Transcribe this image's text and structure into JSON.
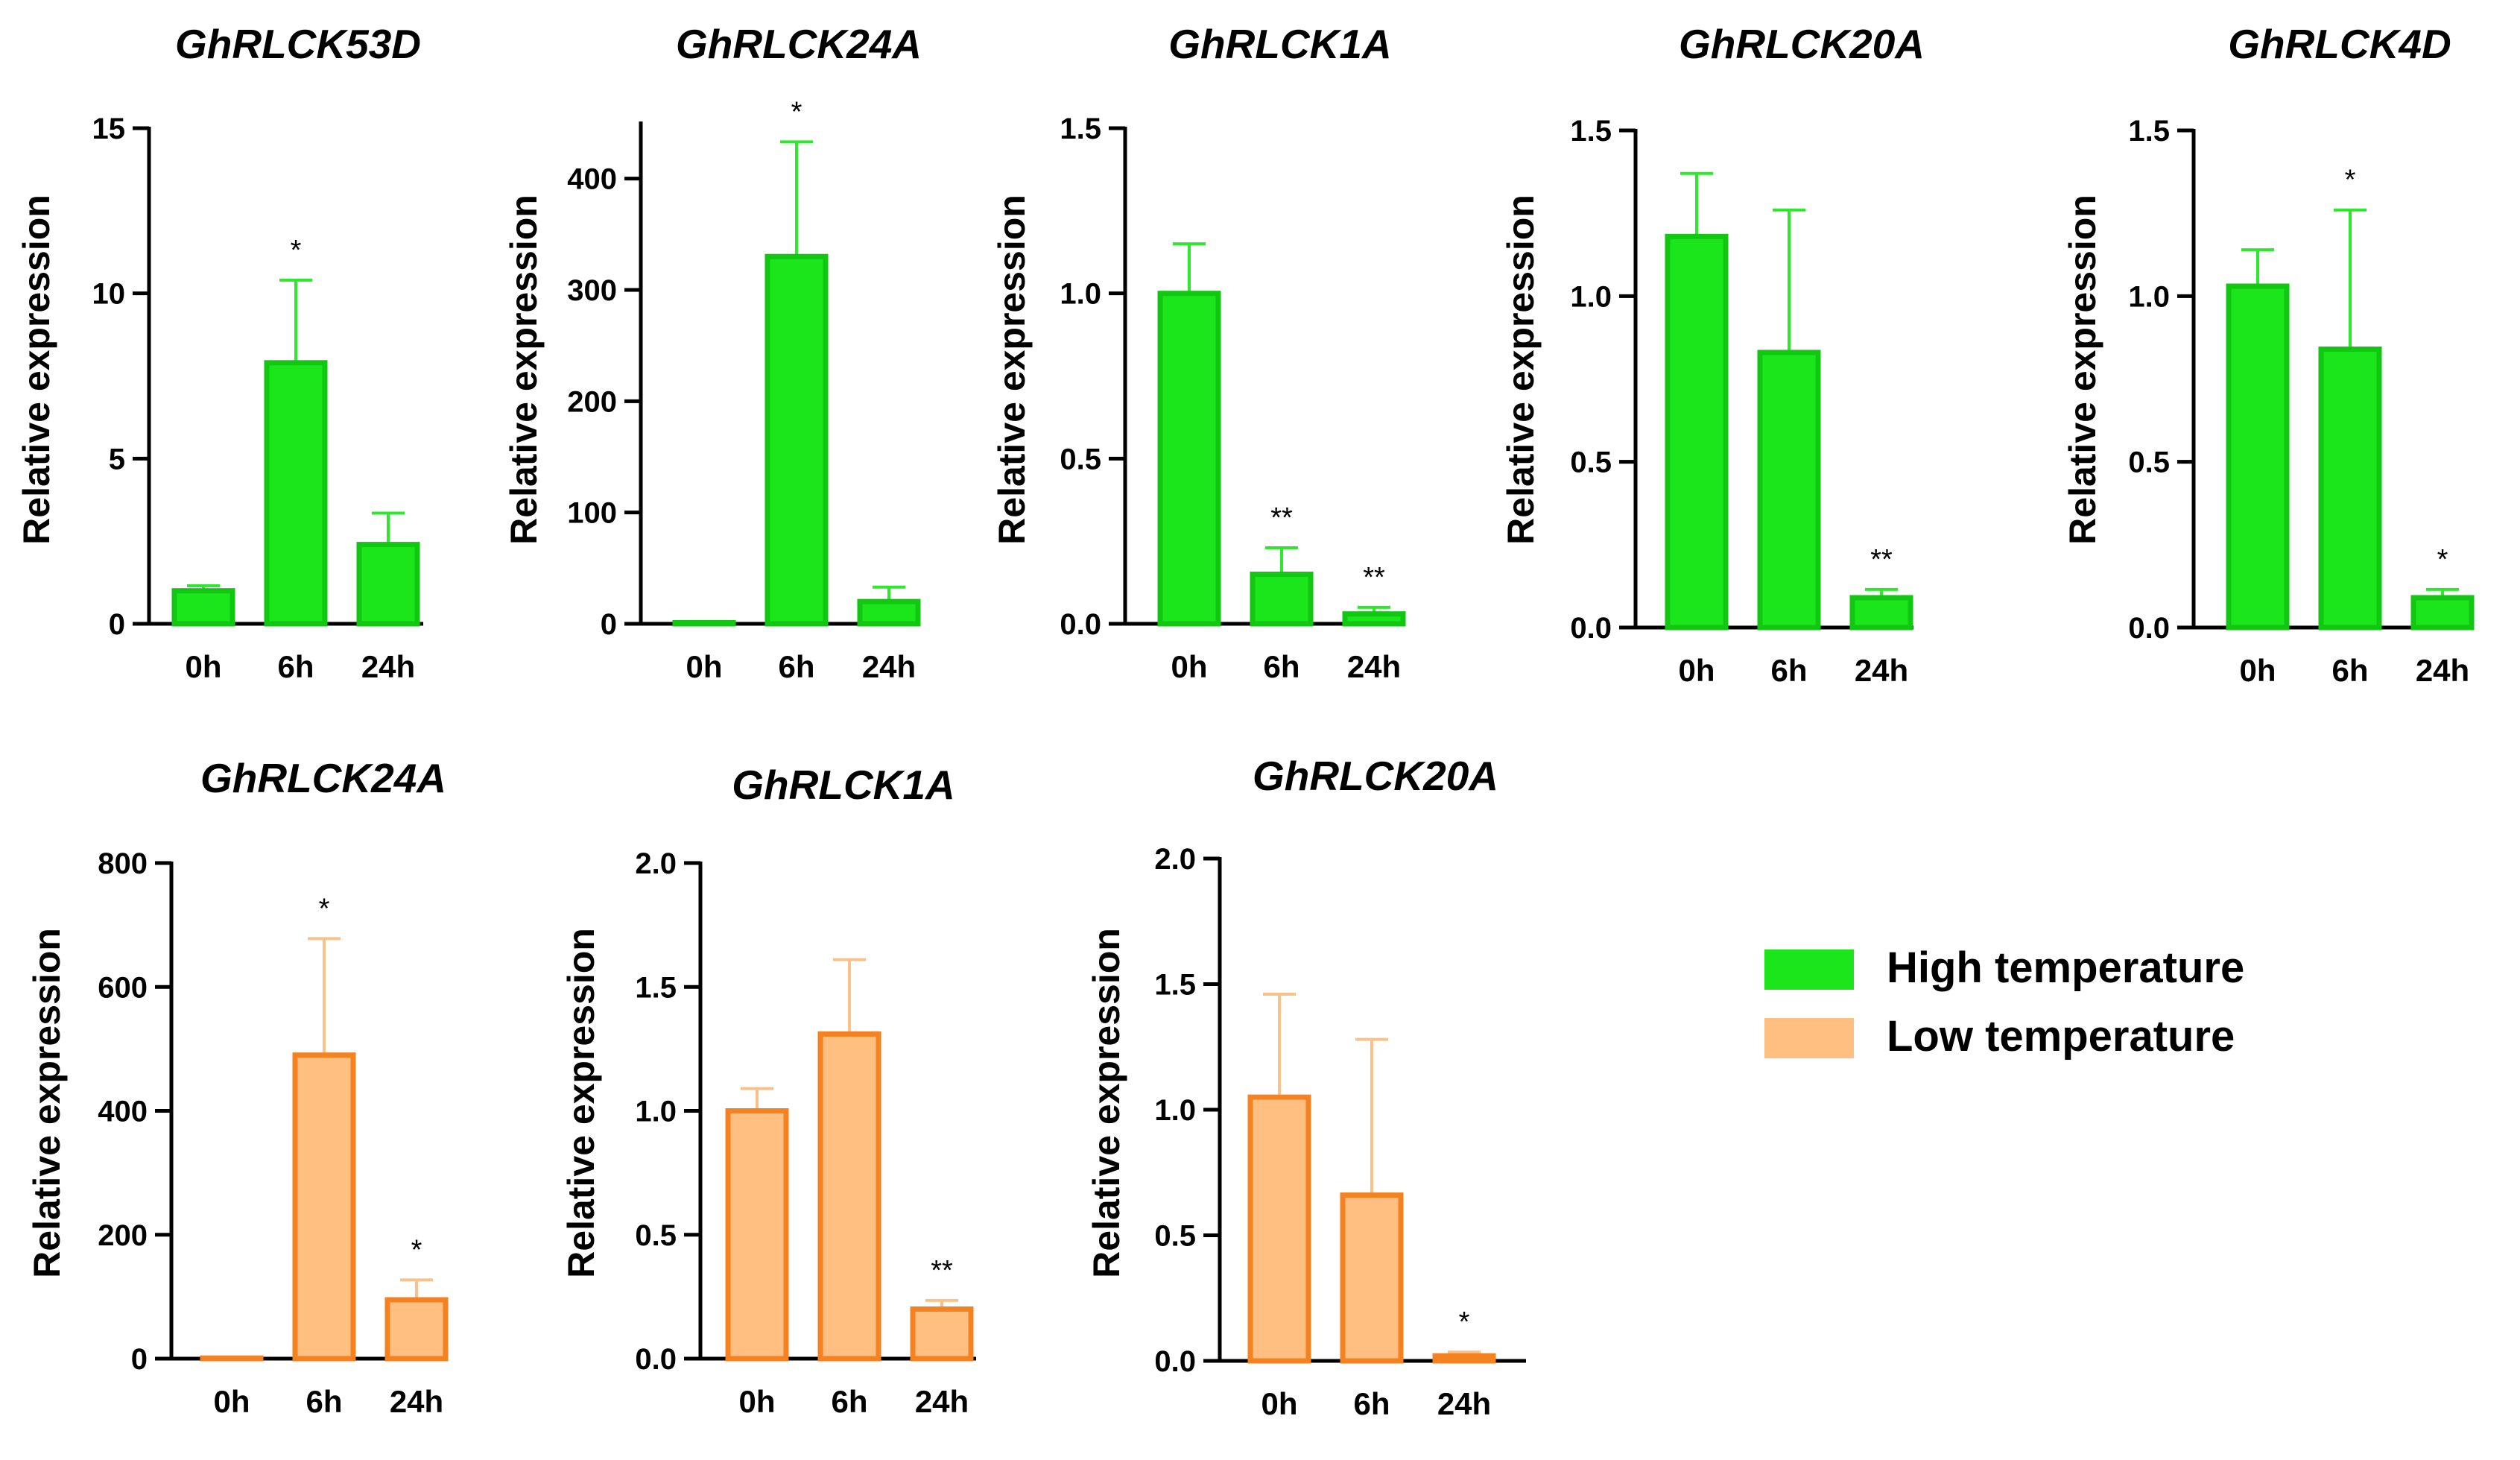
{
  "chart_data": [
    {
      "type": "bar",
      "title": "GhRLCK53D",
      "ylabel": "Relative expression",
      "xlabel": "",
      "categories": [
        "0h",
        "6h",
        "24h"
      ],
      "series": [
        {
          "name": "High temperature",
          "values": [
            1.0,
            7.9,
            2.4
          ],
          "errors": [
            0.15,
            2.5,
            0.95
          ],
          "significance": [
            "",
            "*",
            ""
          ]
        }
      ],
      "ylim": [
        0,
        15
      ],
      "yticks": [
        0,
        5,
        10,
        15
      ],
      "ytick_labels": [
        "0",
        "5",
        "10",
        "15"
      ],
      "grid": false
    },
    {
      "type": "bar",
      "title": "GhRLCK24A",
      "ylabel": "Relative expression",
      "xlabel": "",
      "categories": [
        "0h",
        "6h",
        "24h"
      ],
      "series": [
        {
          "name": "High temperature",
          "values": [
            1,
            330,
            20
          ],
          "errors": [
            0,
            103,
            13
          ],
          "significance": [
            "",
            "*",
            ""
          ]
        }
      ],
      "ylim": [
        0,
        450
      ],
      "yticks": [
        0,
        100,
        200,
        300,
        400
      ],
      "ytick_labels": [
        "0",
        "100",
        "200",
        "300",
        "400"
      ],
      "grid": false
    },
    {
      "type": "bar",
      "title": "GhRLCK1A",
      "ylabel": "Relative expression",
      "xlabel": "",
      "categories": [
        "0h",
        "6h",
        "24h"
      ],
      "series": [
        {
          "name": "High temperature",
          "values": [
            1.0,
            0.15,
            0.03
          ],
          "errors": [
            0.15,
            0.08,
            0.02
          ],
          "significance": [
            "",
            "**",
            "**"
          ]
        }
      ],
      "ylim": [
        0,
        1.5
      ],
      "yticks": [
        0,
        0.5,
        1.0,
        1.5
      ],
      "ytick_labels": [
        "0.0",
        "0.5",
        "1.0",
        "1.5"
      ],
      "grid": false
    },
    {
      "type": "bar",
      "title": "GhRLCK20A",
      "ylabel": "Relative expression",
      "xlabel": "",
      "categories": [
        "0h",
        "6h",
        "24h"
      ],
      "series": [
        {
          "name": "High temperature",
          "values": [
            1.18,
            0.83,
            0.09
          ],
          "errors": [
            0.19,
            0.43,
            0.025
          ],
          "significance": [
            "",
            "",
            "**"
          ]
        }
      ],
      "ylim": [
        0,
        1.5
      ],
      "yticks": [
        0,
        0.5,
        1.0,
        1.5
      ],
      "ytick_labels": [
        "0.0",
        "0.5",
        "1.0",
        "1.5"
      ],
      "grid": false
    },
    {
      "type": "bar",
      "title": "GhRLCK4D",
      "ylabel": "Relative expression",
      "xlabel": "",
      "categories": [
        "0h",
        "6h",
        "24h"
      ],
      "series": [
        {
          "name": "High temperature",
          "values": [
            1.03,
            0.84,
            0.09
          ],
          "errors": [
            0.11,
            0.42,
            0.025
          ],
          "significance": [
            "",
            "*",
            "*"
          ]
        }
      ],
      "ylim": [
        0,
        1.5
      ],
      "yticks": [
        0,
        0.5,
        1.0,
        1.5
      ],
      "ytick_labels": [
        "0.0",
        "0.5",
        "1.0",
        "1.5"
      ],
      "grid": false
    },
    {
      "type": "bar",
      "title": "GhRLCK24A",
      "ylabel": "Relative expression",
      "xlabel": "",
      "categories": [
        "0h",
        "6h",
        "24h"
      ],
      "series": [
        {
          "name": "Low temperature",
          "values": [
            1,
            490,
            95
          ],
          "errors": [
            0,
            188,
            32
          ],
          "significance": [
            "",
            "*",
            "*"
          ]
        }
      ],
      "ylim": [
        0,
        800
      ],
      "yticks": [
        0,
        200,
        400,
        600,
        800
      ],
      "ytick_labels": [
        "0",
        "200",
        "400",
        "600",
        "800"
      ],
      "grid": false
    },
    {
      "type": "bar",
      "title": "GhRLCK1A",
      "ylabel": "Relative expression",
      "xlabel": "",
      "categories": [
        "0h",
        "6h",
        "24h"
      ],
      "series": [
        {
          "name": "Low temperature",
          "values": [
            1.0,
            1.31,
            0.2
          ],
          "errors": [
            0.09,
            0.3,
            0.035
          ],
          "significance": [
            "",
            "",
            "**"
          ]
        }
      ],
      "ylim": [
        0,
        2.0
      ],
      "yticks": [
        0,
        0.5,
        1.0,
        1.5,
        2.0
      ],
      "ytick_labels": [
        "0.0",
        "0.5",
        "1.0",
        "1.5",
        "2.0"
      ],
      "grid": false
    },
    {
      "type": "bar",
      "title": "GhRLCK20A",
      "ylabel": "Relative expression",
      "xlabel": "",
      "categories": [
        "0h",
        "6h",
        "24h"
      ],
      "series": [
        {
          "name": "Low temperature",
          "values": [
            1.05,
            0.66,
            0.02
          ],
          "errors": [
            0.41,
            0.62,
            0.015
          ],
          "significance": [
            "",
            "",
            "*"
          ]
        }
      ],
      "ylim": [
        0,
        2.0
      ],
      "yticks": [
        0,
        0.5,
        1.0,
        1.5,
        2.0
      ],
      "ytick_labels": [
        "0.0",
        "0.5",
        "1.0",
        "1.5",
        "2.0"
      ],
      "grid": false
    }
  ],
  "legend": {
    "placement": "right",
    "items": [
      {
        "label": "High temperature",
        "fill": "#1be61b",
        "stroke": "#1be61b"
      },
      {
        "label": "Low temperature",
        "fill": "#ffbf80",
        "stroke": "#ffbf80"
      }
    ]
  },
  "colors": {
    "high": {
      "fill": "#1be61b",
      "stroke": "#11c711",
      "error": "#2ee82e"
    },
    "low": {
      "fill": "#ffbf80",
      "stroke": "#f58220",
      "error": "#f9c28a"
    },
    "axis": "#000000"
  }
}
